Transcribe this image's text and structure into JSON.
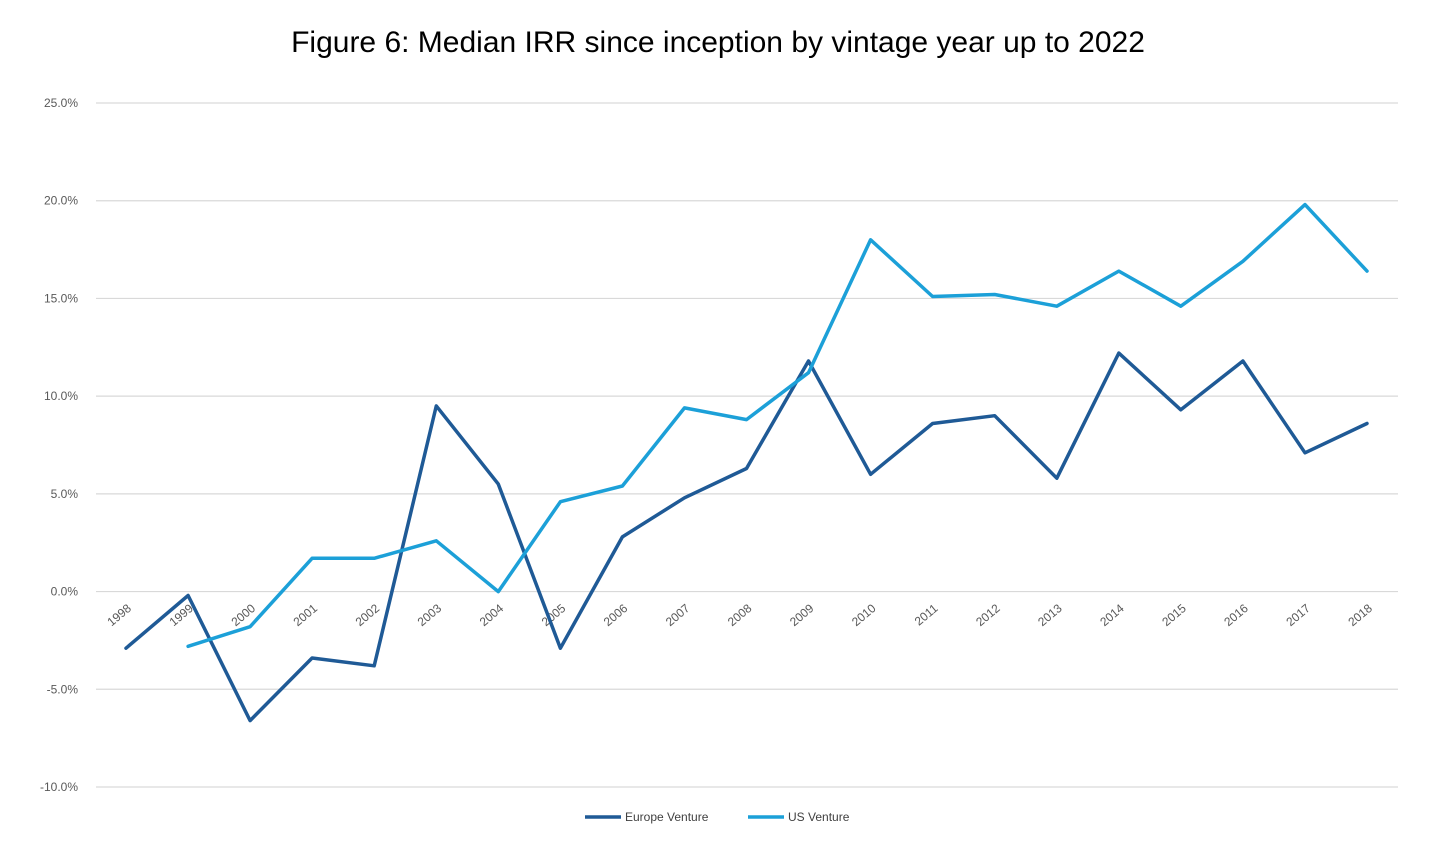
{
  "chart_data": {
    "type": "line",
    "title": "Figure 6: Median IRR since inception by vintage year up to 2022",
    "xlabel": "",
    "ylabel": "",
    "ylim": [
      -10.0,
      25.0
    ],
    "y_ticks": [
      "25.0%",
      "20.0%",
      "15.0%",
      "10.0%",
      "5.0%",
      "0.0%",
      "-5.0%",
      "-10.0%"
    ],
    "y_tick_values": [
      25,
      20,
      15,
      10,
      5,
      0,
      -5,
      -10
    ],
    "categories": [
      "1998",
      "1999",
      "2000",
      "2001",
      "2002",
      "2003",
      "2004",
      "2005",
      "2006",
      "2007",
      "2008",
      "2009",
      "2010",
      "2011",
      "2012",
      "2013",
      "2014",
      "2015",
      "2016",
      "2017",
      "2018"
    ],
    "grid": true,
    "legend_position": "bottom",
    "series": [
      {
        "name": "Europe Venture",
        "color": "#1F5A96",
        "values": [
          -2.9,
          -0.2,
          -6.6,
          -3.4,
          -3.8,
          9.5,
          5.5,
          -2.9,
          2.8,
          4.8,
          6.3,
          11.8,
          6.0,
          8.6,
          9.0,
          5.8,
          12.2,
          9.3,
          11.8,
          7.1,
          8.6
        ]
      },
      {
        "name": "US Venture",
        "color": "#1CA0D8",
        "values": [
          null,
          -2.8,
          -1.8,
          1.7,
          1.7,
          2.6,
          0.0,
          4.6,
          5.4,
          9.4,
          8.8,
          11.2,
          18.0,
          15.1,
          15.2,
          14.6,
          16.4,
          14.6,
          16.9,
          19.8,
          16.4
        ]
      }
    ]
  }
}
